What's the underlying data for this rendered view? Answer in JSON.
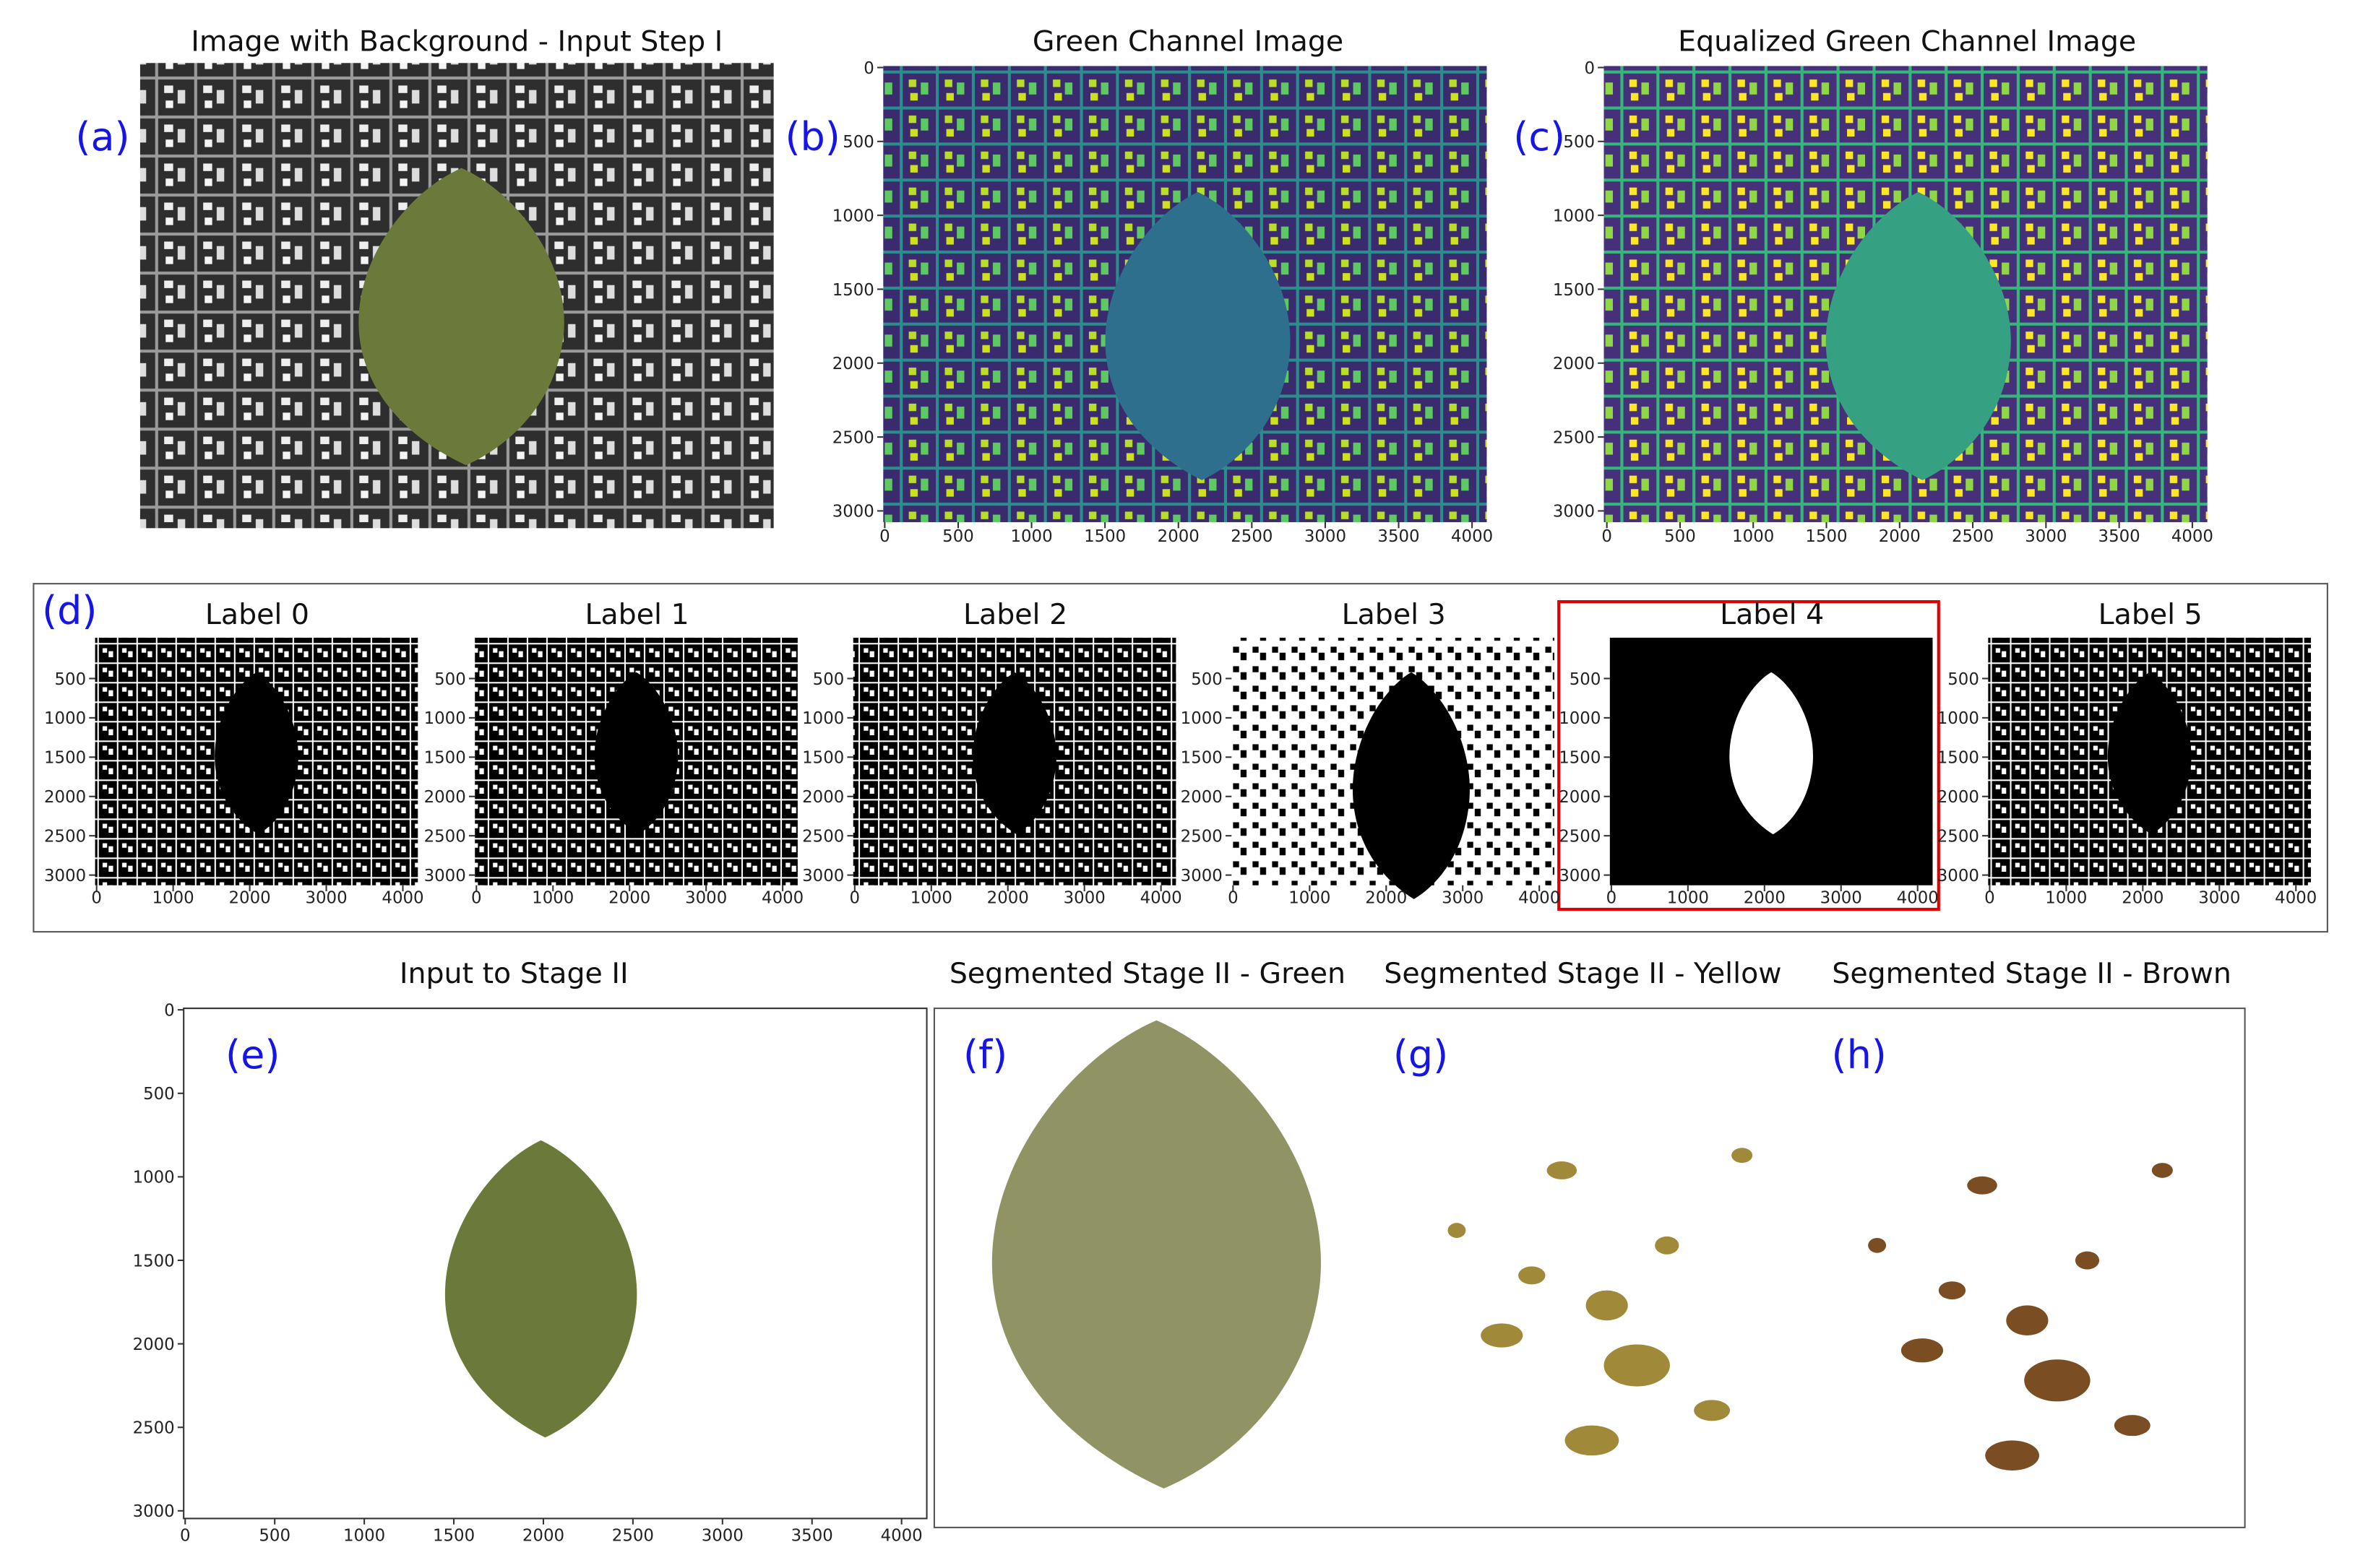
{
  "row_d": {
    "letter": "(d)"
  },
  "panels": [
    {
      "letter": "(a)",
      "title": "Image with Background - Input Step I"
    },
    {
      "letter": "(b)",
      "title": "Green Channel Image",
      "xticks": [
        0,
        500,
        1000,
        1500,
        2000,
        2500,
        3000,
        3500,
        4000
      ],
      "yticks": [
        0,
        500,
        1000,
        1500,
        2000,
        2500,
        3000
      ]
    },
    {
      "letter": "(c)",
      "title": "Equalized Green Channel Image",
      "xticks": [
        0,
        500,
        1000,
        1500,
        2000,
        2500,
        3000,
        3500,
        4000
      ],
      "yticks": [
        0,
        500,
        1000,
        1500,
        2000,
        2500,
        3000
      ]
    },
    {
      "title": "Label 0",
      "xticks": [
        0,
        1000,
        2000,
        3000,
        4000
      ],
      "yticks": [
        500,
        1000,
        1500,
        2000,
        2500,
        3000
      ]
    },
    {
      "title": "Label 1",
      "xticks": [
        0,
        1000,
        2000,
        3000,
        4000
      ],
      "yticks": [
        500,
        1000,
        1500,
        2000,
        2500,
        3000
      ]
    },
    {
      "title": "Label 2",
      "xticks": [
        0,
        1000,
        2000,
        3000,
        4000
      ],
      "yticks": [
        500,
        1000,
        1500,
        2000,
        2500,
        3000
      ]
    },
    {
      "title": "Label 3",
      "xticks": [
        0,
        1000,
        2000,
        3000,
        4000
      ],
      "yticks": [
        500,
        1000,
        1500,
        2000,
        2500,
        3000
      ]
    },
    {
      "title": "Label 4",
      "xticks": [
        0,
        1000,
        2000,
        3000,
        4000
      ],
      "yticks": [
        500,
        1000,
        1500,
        2000,
        2500,
        3000
      ]
    },
    {
      "title": "Label 5",
      "xticks": [
        0,
        1000,
        2000,
        3000,
        4000
      ],
      "yticks": [
        500,
        1000,
        1500,
        2000,
        2500,
        3000
      ]
    },
    {
      "letter": "(e)",
      "title": "Input to Stage II",
      "xticks": [
        0,
        500,
        1000,
        1500,
        2000,
        2500,
        3000,
        3500,
        4000
      ],
      "yticks": [
        0,
        500,
        1000,
        1500,
        2000,
        2500,
        3000
      ]
    },
    {
      "letter": "(f)",
      "title": "Segmented Stage II - Green"
    },
    {
      "letter": "(g)",
      "title": "Segmented Stage II - Yellow"
    },
    {
      "letter": "(h)",
      "title": "Segmented Stage II - Brown"
    }
  ]
}
